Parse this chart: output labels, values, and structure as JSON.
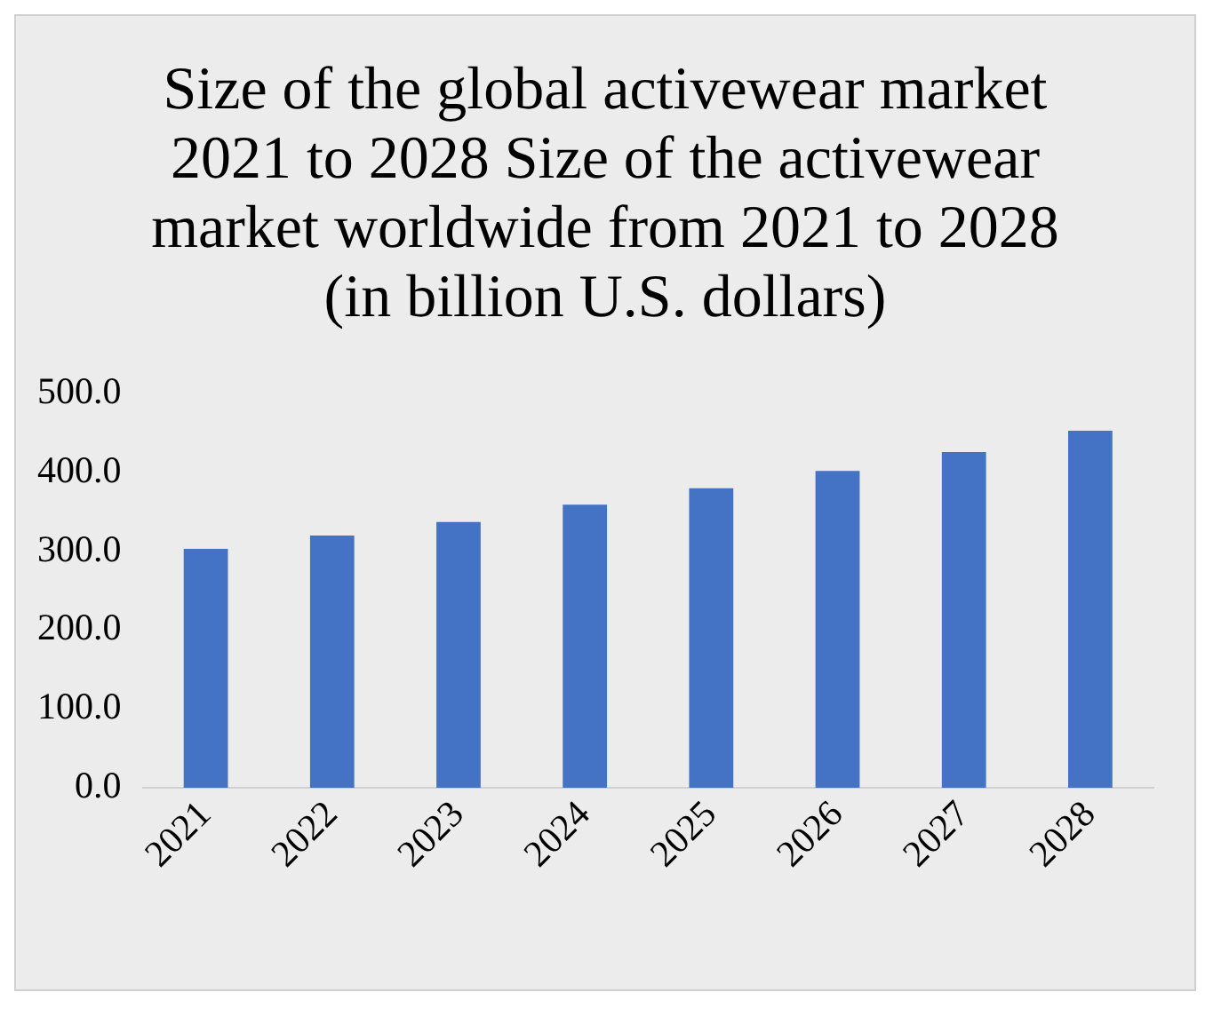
{
  "chart_data": {
    "type": "bar",
    "title": "Size of the global activewear market 2021 to 2028 Size of the activewear market worldwide from 2021 to 2028 (in billion U.S. dollars)",
    "categories": [
      "2021",
      "2022",
      "2023",
      "2024",
      "2025",
      "2026",
      "2027",
      "2028"
    ],
    "values": [
      303,
      320,
      337,
      359,
      380,
      402,
      426,
      453
    ],
    "color": "#4472c4",
    "ylim": [
      0,
      500
    ],
    "yticks": [
      {
        "value": 0,
        "label": "0.0"
      },
      {
        "value": 100,
        "label": "100.0"
      },
      {
        "value": 200,
        "label": "200.0"
      },
      {
        "value": 300,
        "label": "300.0"
      },
      {
        "value": 400,
        "label": "400.0"
      },
      {
        "value": 500,
        "label": "500.0"
      }
    ],
    "grid": false,
    "legend": false
  }
}
